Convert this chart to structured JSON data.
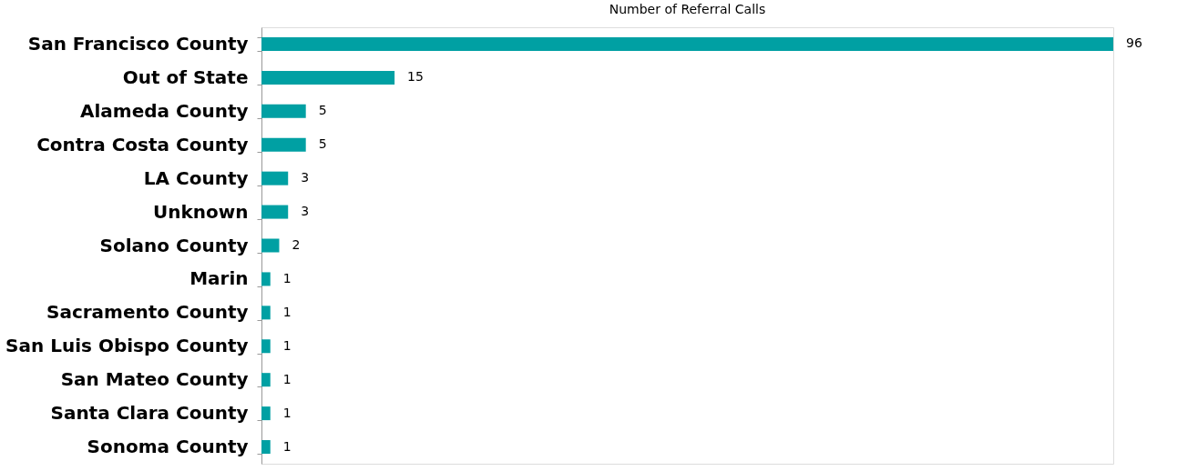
{
  "chart_data": {
    "type": "bar",
    "orientation": "horizontal",
    "title": "Number of Referral Calls",
    "categories": [
      "San Francisco County",
      "Out of State",
      "Alameda County",
      "Contra Costa County",
      "LA County",
      "Unknown",
      "Solano County",
      "Marin",
      "Sacramento County",
      "San Luis Obispo County",
      "San Mateo County",
      "Santa Clara County",
      "Sonoma County"
    ],
    "values": [
      96,
      15,
      5,
      5,
      3,
      3,
      2,
      1,
      1,
      1,
      1,
      1,
      1
    ],
    "color": "#00a0a3",
    "xlim": [
      0,
      96
    ],
    "data_labels": true,
    "tick_labels": "y"
  }
}
